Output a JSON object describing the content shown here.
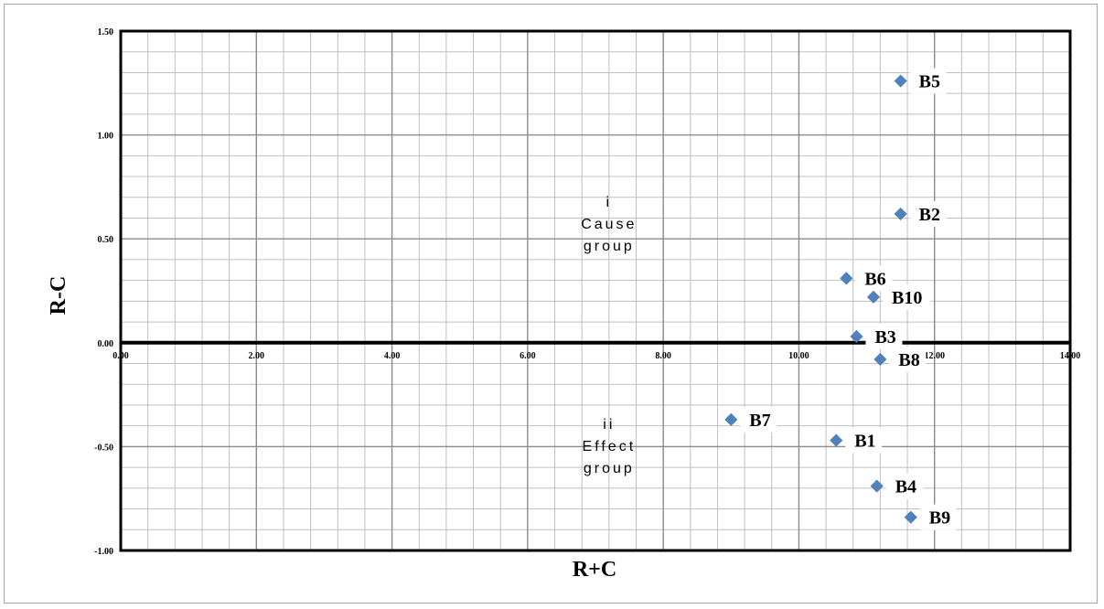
{
  "chart_data": {
    "type": "scatter",
    "xlabel": "R+C",
    "ylabel": "R-C",
    "xlim": [
      0,
      14
    ],
    "ylim": [
      -1,
      1.5
    ],
    "x_major_step": 2,
    "x_minor_step": 0.4,
    "y_major_step": 0.5,
    "y_minor_step": 0.1,
    "grid": true,
    "marker_color": "#4f81bd",
    "x_ticks": [
      "0.00",
      "2.00",
      "4.00",
      "6.00",
      "8.00",
      "10.00",
      "12.00",
      "14.00"
    ],
    "y_ticks": [
      "1.50",
      "1.00",
      "0.50",
      "0.00",
      "-0.50",
      "-1.00"
    ],
    "points": [
      {
        "label": "B5",
        "x": 11.5,
        "y": 1.26
      },
      {
        "label": "B2",
        "x": 11.5,
        "y": 0.62
      },
      {
        "label": "B6",
        "x": 10.7,
        "y": 0.31
      },
      {
        "label": "B10",
        "x": 11.1,
        "y": 0.22
      },
      {
        "label": "B3",
        "x": 10.85,
        "y": 0.03
      },
      {
        "label": "B8",
        "x": 11.2,
        "y": -0.08
      },
      {
        "label": "B7",
        "x": 9.0,
        "y": -0.37
      },
      {
        "label": "B1",
        "x": 10.55,
        "y": -0.47
      },
      {
        "label": "B4",
        "x": 11.15,
        "y": -0.69
      },
      {
        "label": "B9",
        "x": 11.65,
        "y": -0.84
      }
    ],
    "annotations": [
      {
        "lines": [
          "i",
          "Cause",
          "group"
        ],
        "x": 7.2,
        "y": 0.55
      },
      {
        "lines": [
          "ii",
          "Effect",
          "group"
        ],
        "x": 7.2,
        "y": -0.52
      }
    ]
  }
}
